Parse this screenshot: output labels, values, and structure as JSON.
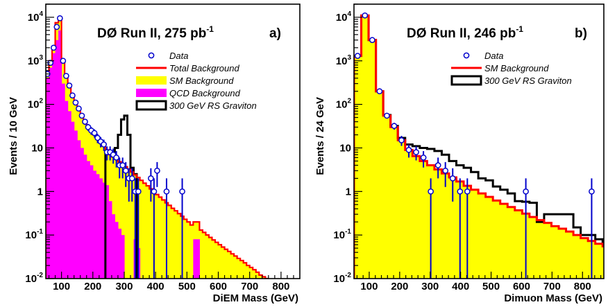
{
  "chart_data": [
    {
      "id": "a",
      "type": "histogram",
      "title": "DØ Run II, 275 pb",
      "title_sup": "-1",
      "panel_label": "a)",
      "xlabel": "DiEM Mass (GeV)",
      "ylabel": "Events / 10 GeV",
      "xlim": [
        50,
        860
      ],
      "ylim": [
        0.01,
        20000
      ],
      "yscale": "log",
      "xticks": [
        100,
        200,
        300,
        400,
        500,
        600,
        700,
        800
      ],
      "yticks": [
        {
          "v": 0.01,
          "base": "10",
          "exp": "-2"
        },
        {
          "v": 0.1,
          "base": "10",
          "exp": "-1"
        },
        {
          "v": 1,
          "base": "1",
          "exp": ""
        },
        {
          "v": 10,
          "base": "10",
          "exp": ""
        },
        {
          "v": 100,
          "base": "10",
          "exp": "2"
        },
        {
          "v": 1000,
          "base": "10",
          "exp": "3"
        },
        {
          "v": 10000,
          "base": "10",
          "exp": "4"
        }
      ],
      "legend": {
        "position": "top-right",
        "entries": [
          {
            "label": "Data",
            "style": "marker",
            "color": "#0000cc"
          },
          {
            "label": "Total Background",
            "style": "line",
            "color": "#ff0000"
          },
          {
            "label": "SM Background",
            "style": "fill",
            "color": "#ffff00"
          },
          {
            "label": "QCD Background",
            "style": "fill",
            "color": "#ff00ff"
          },
          {
            "label": "300 GeV RS Graviton",
            "style": "box",
            "color": "#000000"
          }
        ]
      },
      "bin_width": 10,
      "total_background": [
        [
          50,
          500
        ],
        [
          60,
          1000
        ],
        [
          70,
          2000
        ],
        [
          80,
          7500
        ],
        [
          90,
          10000
        ],
        [
          100,
          1000
        ],
        [
          110,
          450
        ],
        [
          120,
          250
        ],
        [
          130,
          150
        ],
        [
          140,
          110
        ],
        [
          150,
          80
        ],
        [
          160,
          55
        ],
        [
          170,
          40
        ],
        [
          180,
          30
        ],
        [
          190,
          25
        ],
        [
          200,
          20
        ],
        [
          210,
          16
        ],
        [
          220,
          13
        ],
        [
          230,
          11
        ],
        [
          240,
          9
        ],
        [
          250,
          7
        ],
        [
          260,
          6.2
        ],
        [
          270,
          5.5
        ],
        [
          280,
          4.8
        ],
        [
          290,
          4.2
        ],
        [
          300,
          3.7
        ],
        [
          310,
          3.2
        ],
        [
          320,
          2.8
        ],
        [
          330,
          2.4
        ],
        [
          340,
          2.1
        ],
        [
          350,
          1.8
        ],
        [
          360,
          1.55
        ],
        [
          370,
          1.35
        ],
        [
          380,
          1.15
        ],
        [
          390,
          1.0
        ],
        [
          400,
          0.85
        ],
        [
          410,
          0.74
        ],
        [
          420,
          0.64
        ],
        [
          430,
          0.55
        ],
        [
          440,
          0.48
        ],
        [
          450,
          0.41
        ],
        [
          460,
          0.36
        ],
        [
          470,
          0.31
        ],
        [
          480,
          0.27
        ],
        [
          490,
          0.23
        ],
        [
          500,
          0.2
        ],
        [
          510,
          0.17
        ],
        [
          520,
          0.2
        ],
        [
          530,
          0.2
        ],
        [
          540,
          0.13
        ],
        [
          550,
          0.115
        ],
        [
          560,
          0.1
        ],
        [
          570,
          0.088
        ],
        [
          580,
          0.077
        ],
        [
          590,
          0.068
        ],
        [
          600,
          0.06
        ],
        [
          610,
          0.053
        ],
        [
          620,
          0.047
        ],
        [
          630,
          0.042
        ],
        [
          640,
          0.037
        ],
        [
          650,
          0.033
        ],
        [
          660,
          0.029
        ],
        [
          670,
          0.026
        ],
        [
          680,
          0.023
        ],
        [
          690,
          0.02
        ],
        [
          700,
          0.018
        ],
        [
          710,
          0.016
        ],
        [
          720,
          0.014
        ],
        [
          730,
          0.012
        ],
        [
          740,
          0.011
        ],
        [
          750,
          0.01
        ]
      ],
      "qcd_background": [
        [
          50,
          400
        ],
        [
          60,
          700
        ],
        [
          70,
          1500
        ],
        [
          80,
          3000
        ],
        [
          90,
          5000
        ],
        [
          100,
          300
        ],
        [
          110,
          120
        ],
        [
          120,
          70
        ],
        [
          130,
          40
        ],
        [
          140,
          25
        ],
        [
          150,
          15
        ],
        [
          160,
          10
        ],
        [
          170,
          7
        ],
        [
          180,
          5
        ],
        [
          190,
          4
        ],
        [
          200,
          3
        ],
        [
          210,
          2.5
        ],
        [
          220,
          2
        ],
        [
          230,
          1.6
        ],
        [
          240,
          1.4
        ],
        [
          250,
          0.6
        ],
        [
          260,
          0.3
        ],
        [
          270,
          0.2
        ],
        [
          280,
          0.14
        ],
        [
          290,
          0.1
        ],
        [
          300,
          0.01
        ],
        [
          310,
          0.01
        ],
        [
          320,
          0.01
        ],
        [
          330,
          0.08
        ],
        [
          340,
          0.05
        ],
        [
          350,
          0.01
        ],
        [
          360,
          0.01
        ],
        [
          370,
          0.01
        ],
        [
          380,
          0.01
        ],
        [
          390,
          0.01
        ],
        [
          400,
          0.01
        ],
        [
          410,
          0.01
        ],
        [
          420,
          0.01
        ],
        [
          430,
          0.01
        ],
        [
          440,
          0.01
        ],
        [
          450,
          0.01
        ],
        [
          460,
          0.01
        ],
        [
          470,
          0.01
        ],
        [
          480,
          0.01
        ],
        [
          490,
          0.01
        ],
        [
          500,
          0.01
        ],
        [
          510,
          0.01
        ],
        [
          520,
          0.08
        ],
        [
          530,
          0.08
        ],
        [
          540,
          0.01
        ]
      ],
      "signal": [
        [
          240,
          8
        ],
        [
          250,
          8
        ],
        [
          260,
          8
        ],
        [
          270,
          10
        ],
        [
          280,
          20
        ],
        [
          290,
          45
        ],
        [
          300,
          55
        ],
        [
          310,
          20
        ],
        [
          320,
          3.5
        ],
        [
          330,
          2.5
        ]
      ],
      "data_points": [
        [
          55,
          500
        ],
        [
          65,
          900
        ],
        [
          75,
          2000
        ],
        [
          85,
          6000
        ],
        [
          95,
          9500
        ],
        [
          105,
          1000
        ],
        [
          115,
          450
        ],
        [
          125,
          270
        ],
        [
          135,
          160
        ],
        [
          145,
          110
        ],
        [
          155,
          80
        ],
        [
          165,
          55
        ],
        [
          175,
          40
        ],
        [
          185,
          30
        ],
        [
          195,
          25
        ],
        [
          205,
          22
        ],
        [
          215,
          17
        ],
        [
          225,
          14
        ],
        [
          235,
          12
        ],
        [
          245,
          8
        ],
        [
          255,
          8
        ],
        [
          265,
          7
        ],
        [
          275,
          6
        ],
        [
          285,
          4
        ],
        [
          295,
          4
        ],
        [
          305,
          3
        ],
        [
          315,
          2
        ],
        [
          325,
          2
        ],
        [
          335,
          1
        ],
        [
          345,
          1
        ],
        [
          385,
          2
        ],
        [
          395,
          1
        ],
        [
          405,
          3
        ],
        [
          435,
          1
        ],
        [
          485,
          1
        ]
      ]
    },
    {
      "id": "b",
      "type": "histogram",
      "title": "DØ Run II, 246 pb",
      "title_sup": "-1",
      "panel_label": "b)",
      "xlabel": "Dimuon Mass (GeV)",
      "ylabel": "Events / 24 GeV",
      "xlim": [
        50,
        870
      ],
      "ylim": [
        0.01,
        20000
      ],
      "yscale": "log",
      "xticks": [
        100,
        200,
        300,
        400,
        500,
        600,
        700,
        800
      ],
      "yticks": [
        {
          "v": 0.01,
          "base": "10",
          "exp": "-2"
        },
        {
          "v": 0.1,
          "base": "10",
          "exp": "-1"
        },
        {
          "v": 1,
          "base": "1",
          "exp": ""
        },
        {
          "v": 10,
          "base": "10",
          "exp": ""
        },
        {
          "v": 100,
          "base": "10",
          "exp": "2"
        },
        {
          "v": 1000,
          "base": "10",
          "exp": "3"
        },
        {
          "v": 10000,
          "base": "10",
          "exp": "4"
        }
      ],
      "legend": {
        "position": "top-right",
        "entries": [
          {
            "label": "Data",
            "style": "marker",
            "color": "#0000cc"
          },
          {
            "label": "SM Background",
            "style": "line",
            "color": "#ff0000"
          },
          {
            "label": "300 GeV RS Graviton",
            "style": "box",
            "color": "#000000"
          }
        ]
      },
      "bin_width": 24,
      "sm_background": [
        [
          50,
          1300
        ],
        [
          74,
          11000
        ],
        [
          98,
          3000
        ],
        [
          122,
          200
        ],
        [
          146,
          55
        ],
        [
          170,
          30
        ],
        [
          194,
          15
        ],
        [
          218,
          9
        ],
        [
          242,
          6.5
        ],
        [
          266,
          5
        ],
        [
          290,
          4
        ],
        [
          314,
          3.2
        ],
        [
          338,
          2.6
        ],
        [
          362,
          2.1
        ],
        [
          386,
          1.7
        ],
        [
          410,
          1.35
        ],
        [
          434,
          1.1
        ],
        [
          458,
          0.9
        ],
        [
          482,
          0.75
        ],
        [
          506,
          0.62
        ],
        [
          530,
          0.52
        ],
        [
          554,
          0.44
        ],
        [
          578,
          0.37
        ],
        [
          602,
          0.31
        ],
        [
          626,
          0.26
        ],
        [
          650,
          0.22
        ],
        [
          674,
          0.19
        ],
        [
          698,
          0.16
        ],
        [
          722,
          0.14
        ],
        [
          746,
          0.12
        ],
        [
          770,
          0.1
        ],
        [
          794,
          0.085
        ],
        [
          818,
          0.073
        ],
        [
          842,
          0.063
        ],
        [
          866,
          0.055
        ]
      ],
      "signal_total": [
        [
          50,
          1300
        ],
        [
          74,
          11000
        ],
        [
          98,
          3000
        ],
        [
          122,
          200
        ],
        [
          146,
          57
        ],
        [
          170,
          32
        ],
        [
          194,
          17
        ],
        [
          218,
          12
        ],
        [
          242,
          11
        ],
        [
          266,
          10
        ],
        [
          290,
          9.5
        ],
        [
          314,
          8.5
        ],
        [
          338,
          7
        ],
        [
          362,
          5
        ],
        [
          386,
          4
        ],
        [
          410,
          3.5
        ],
        [
          434,
          2.8
        ],
        [
          458,
          2
        ],
        [
          482,
          1.8
        ],
        [
          506,
          1.3
        ],
        [
          530,
          1.1
        ],
        [
          554,
          0.9
        ],
        [
          578,
          0.6
        ],
        [
          602,
          0.58
        ],
        [
          626,
          0.55
        ],
        [
          650,
          0.2
        ],
        [
          674,
          0.3
        ],
        [
          698,
          0.3
        ],
        [
          722,
          0.3
        ],
        [
          746,
          0.3
        ],
        [
          770,
          0.15
        ],
        [
          794,
          0.1
        ],
        [
          818,
          0.1
        ],
        [
          842,
          0.08
        ],
        [
          866,
          0.07
        ]
      ],
      "data_points": [
        [
          62,
          1300
        ],
        [
          86,
          11000
        ],
        [
          110,
          3000
        ],
        [
          134,
          200
        ],
        [
          158,
          55
        ],
        [
          182,
          32
        ],
        [
          206,
          15
        ],
        [
          230,
          9
        ],
        [
          254,
          8
        ],
        [
          278,
          6
        ],
        [
          302,
          1
        ],
        [
          326,
          4
        ],
        [
          350,
          3
        ],
        [
          374,
          2
        ],
        [
          398,
          1
        ],
        [
          422,
          1
        ],
        [
          614,
          1
        ],
        [
          830,
          1
        ]
      ]
    }
  ]
}
